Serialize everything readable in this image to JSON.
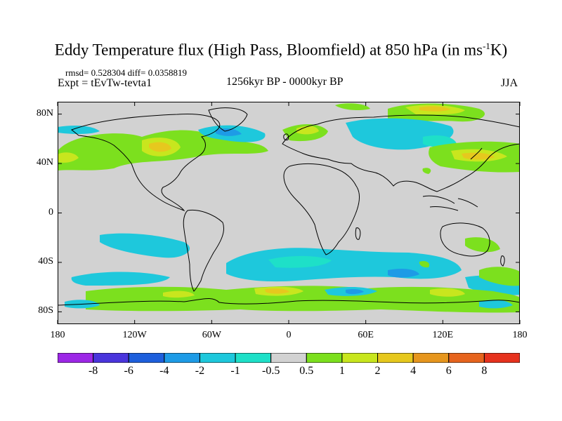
{
  "title": {
    "main": "Eddy Temperature flux (High Pass, Bloomfield) at 850 hPa (in ms",
    "sup": "-1",
    "suffix": "K)"
  },
  "stats": "rmsd= 0.528304 diff= 0.0358819",
  "experiment": "Expt = tEvTw-tevta1",
  "period": "1256kyr BP - 0000kyr BP",
  "season": "JJA",
  "axes": {
    "lat_labels": [
      {
        "text": "80N",
        "lat": 80
      },
      {
        "text": "40N",
        "lat": 40
      },
      {
        "text": "0",
        "lat": 0
      },
      {
        "text": "40S",
        "lat": -40
      },
      {
        "text": "80S",
        "lat": -80
      }
    ],
    "lon_labels": [
      {
        "text": "180",
        "lon": -180
      },
      {
        "text": "120W",
        "lon": -120
      },
      {
        "text": "60W",
        "lon": -60
      },
      {
        "text": "0",
        "lon": 0
      },
      {
        "text": "60E",
        "lon": 60
      },
      {
        "text": "120E",
        "lon": 120
      },
      {
        "text": "180",
        "lon": 180
      }
    ],
    "lon_range": [
      -180,
      180
    ],
    "lat_range": [
      -90,
      90
    ]
  },
  "colorbar": {
    "labels": [
      "-8",
      "-6",
      "-4",
      "-2",
      "-1",
      "-0.5",
      "0.5",
      "1",
      "2",
      "4",
      "6",
      "8"
    ],
    "colors": [
      "#9c27e6",
      "#4a35dc",
      "#1e5fdc",
      "#1e9be6",
      "#1ec8dc",
      "#1ee0c8",
      "#d2d2d2",
      "#7ce01e",
      "#c8e61e",
      "#e6c81e",
      "#e6961e",
      "#e6641e",
      "#e6321e"
    ],
    "neutral_color": "#d2d2d2"
  }
}
